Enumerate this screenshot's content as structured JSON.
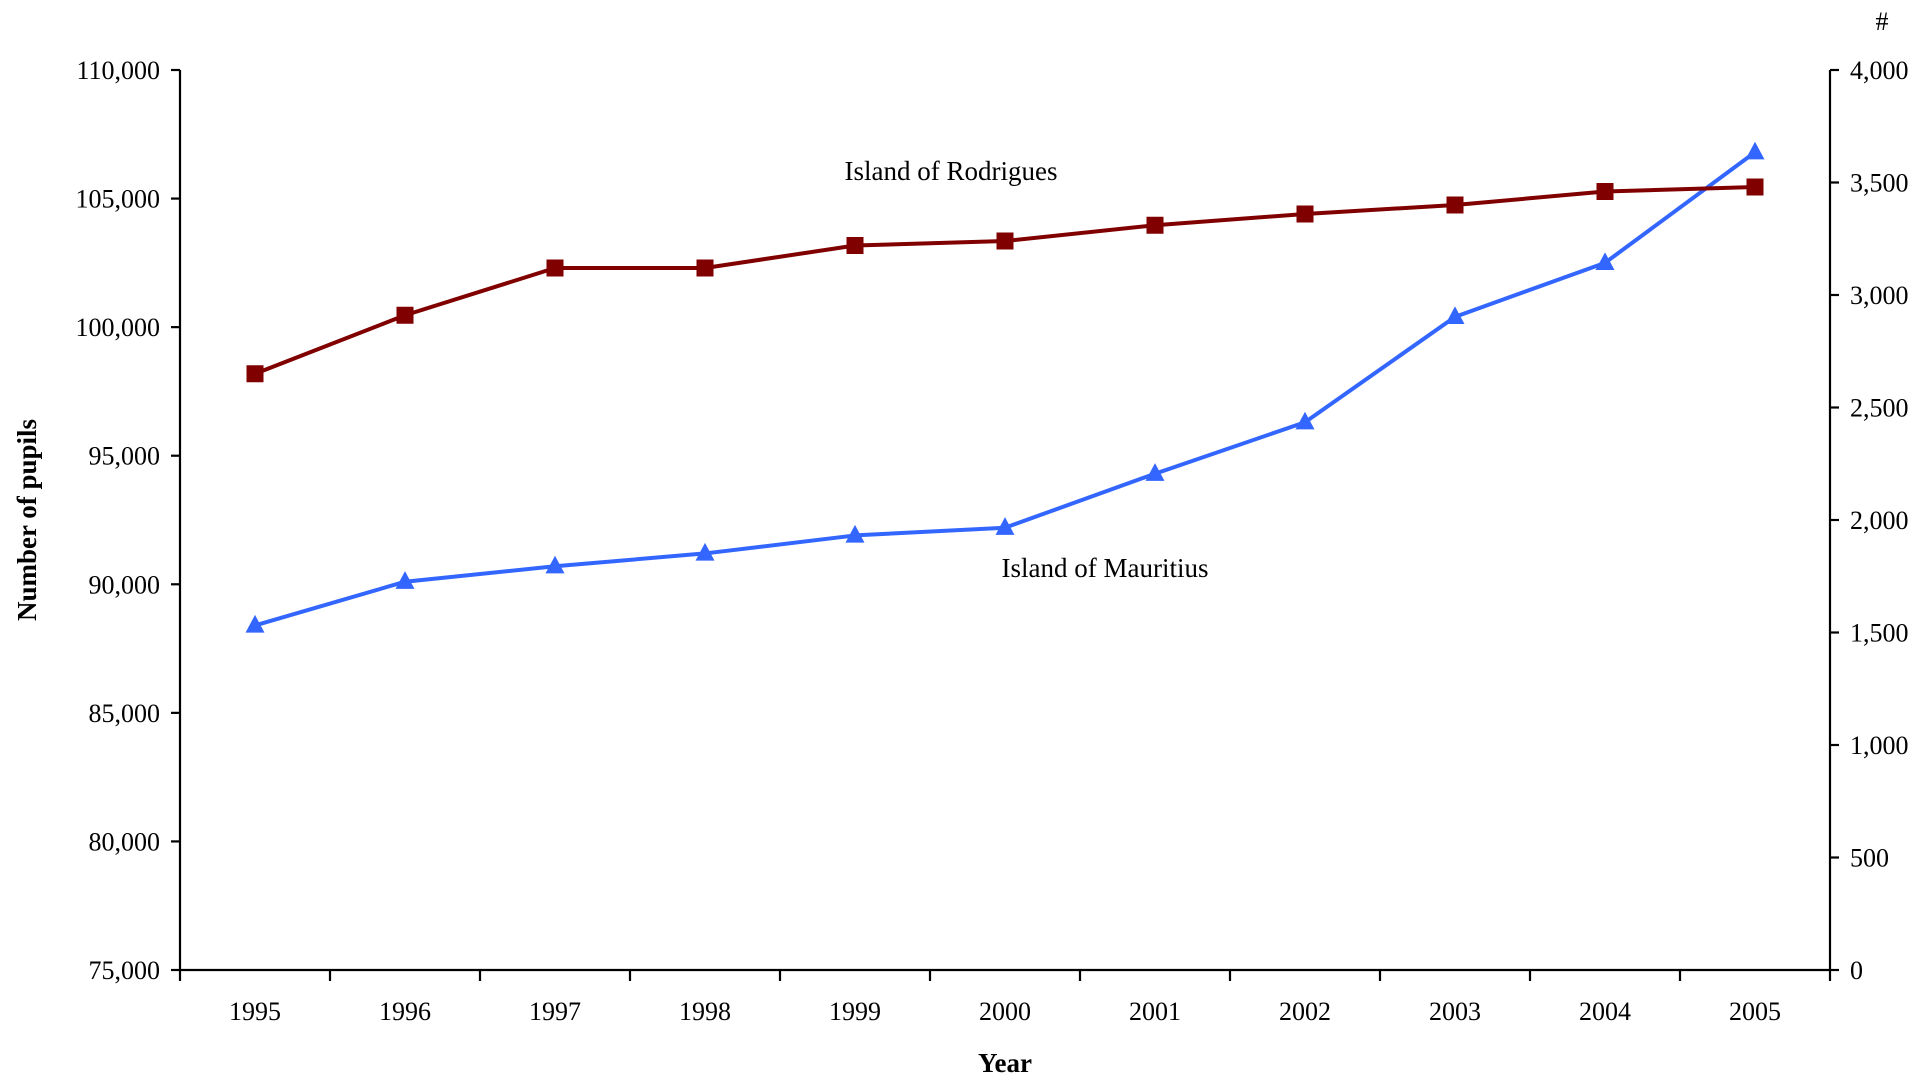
{
  "chart_data": {
    "type": "line",
    "xlabel": "Year",
    "ylabel": "Number of pupils",
    "y2label": "#",
    "categories": [
      "1995",
      "1996",
      "1997",
      "1998",
      "1999",
      "2000",
      "2001",
      "2002",
      "2003",
      "2004",
      "2005"
    ],
    "ylim": [
      75000,
      110000
    ],
    "y2lim": [
      0,
      4000
    ],
    "yticks": [
      75000,
      80000,
      85000,
      90000,
      95000,
      100000,
      105000,
      110000
    ],
    "y2ticks": [
      0,
      500,
      1000,
      1500,
      2000,
      2500,
      3000,
      3500,
      4000
    ],
    "ytick_labels": [
      "75,000",
      "80,000",
      "85,000",
      "90,000",
      "95,000",
      "100,000",
      "105,000",
      "110,000"
    ],
    "y2tick_labels": [
      "0",
      "500",
      "1,000",
      "1,500",
      "2,000",
      "2,500",
      "3,000",
      "3,500",
      "4,000"
    ],
    "grid": false,
    "series": [
      {
        "name": "Island of Mauritius",
        "axis": "left",
        "marker": "triangle",
        "color": "#3366ff",
        "values": [
          88400,
          90100,
          90700,
          91200,
          91900,
          92200,
          94300,
          96300,
          100400,
          102500,
          106800
        ]
      },
      {
        "name": "Island of Rodrigues",
        "axis": "right",
        "marker": "square",
        "color": "#800000",
        "values": [
          2650,
          2910,
          3120,
          3120,
          3220,
          3240,
          3310,
          3360,
          3400,
          3460,
          3480
        ]
      }
    ]
  }
}
